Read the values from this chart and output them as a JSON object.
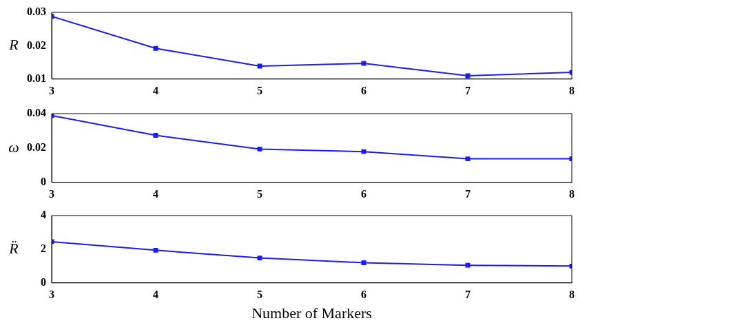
{
  "chart_data": [
    {
      "type": "line",
      "ylabel": "R",
      "x": [
        3,
        4,
        5,
        6,
        7,
        8
      ],
      "xlim": [
        3,
        8
      ],
      "xticks": [
        3,
        4,
        5,
        6,
        7,
        8
      ],
      "ylim": [
        0.01,
        0.03
      ],
      "yticks": [
        0.01,
        0.02,
        0.03
      ],
      "marker": "square",
      "line_style": "solid",
      "series": [
        {
          "color": "#1a1aff",
          "values": [
            0.0288,
            0.0192,
            0.0139,
            0.0147,
            0.011,
            0.012
          ]
        }
      ]
    },
    {
      "type": "line",
      "ylabel": "ω",
      "x": [
        3,
        4,
        5,
        6,
        7,
        8
      ],
      "xlim": [
        3,
        8
      ],
      "xticks": [
        3,
        4,
        5,
        6,
        7,
        8
      ],
      "ylim": [
        0,
        0.04
      ],
      "yticks": [
        0,
        0.02,
        0.04
      ],
      "marker": "square",
      "line_style": "solid",
      "series": [
        {
          "color": "#1a1aff",
          "values": [
            0.0389,
            0.0274,
            0.0194,
            0.0179,
            0.0137,
            0.0137
          ]
        }
      ]
    },
    {
      "type": "line",
      "ylabel": "R̈",
      "xlabel": "Number of Markers",
      "x": [
        3,
        4,
        5,
        6,
        7,
        8
      ],
      "xlim": [
        3,
        8
      ],
      "xticks": [
        3,
        4,
        5,
        6,
        7,
        8
      ],
      "ylim": [
        0,
        4
      ],
      "yticks": [
        0,
        2,
        4
      ],
      "marker": "square",
      "line_style": "solid",
      "series": [
        {
          "color": "#1a1aff",
          "values": [
            2.45,
            1.94,
            1.48,
            1.2,
            1.05,
            1.0
          ]
        }
      ]
    }
  ]
}
